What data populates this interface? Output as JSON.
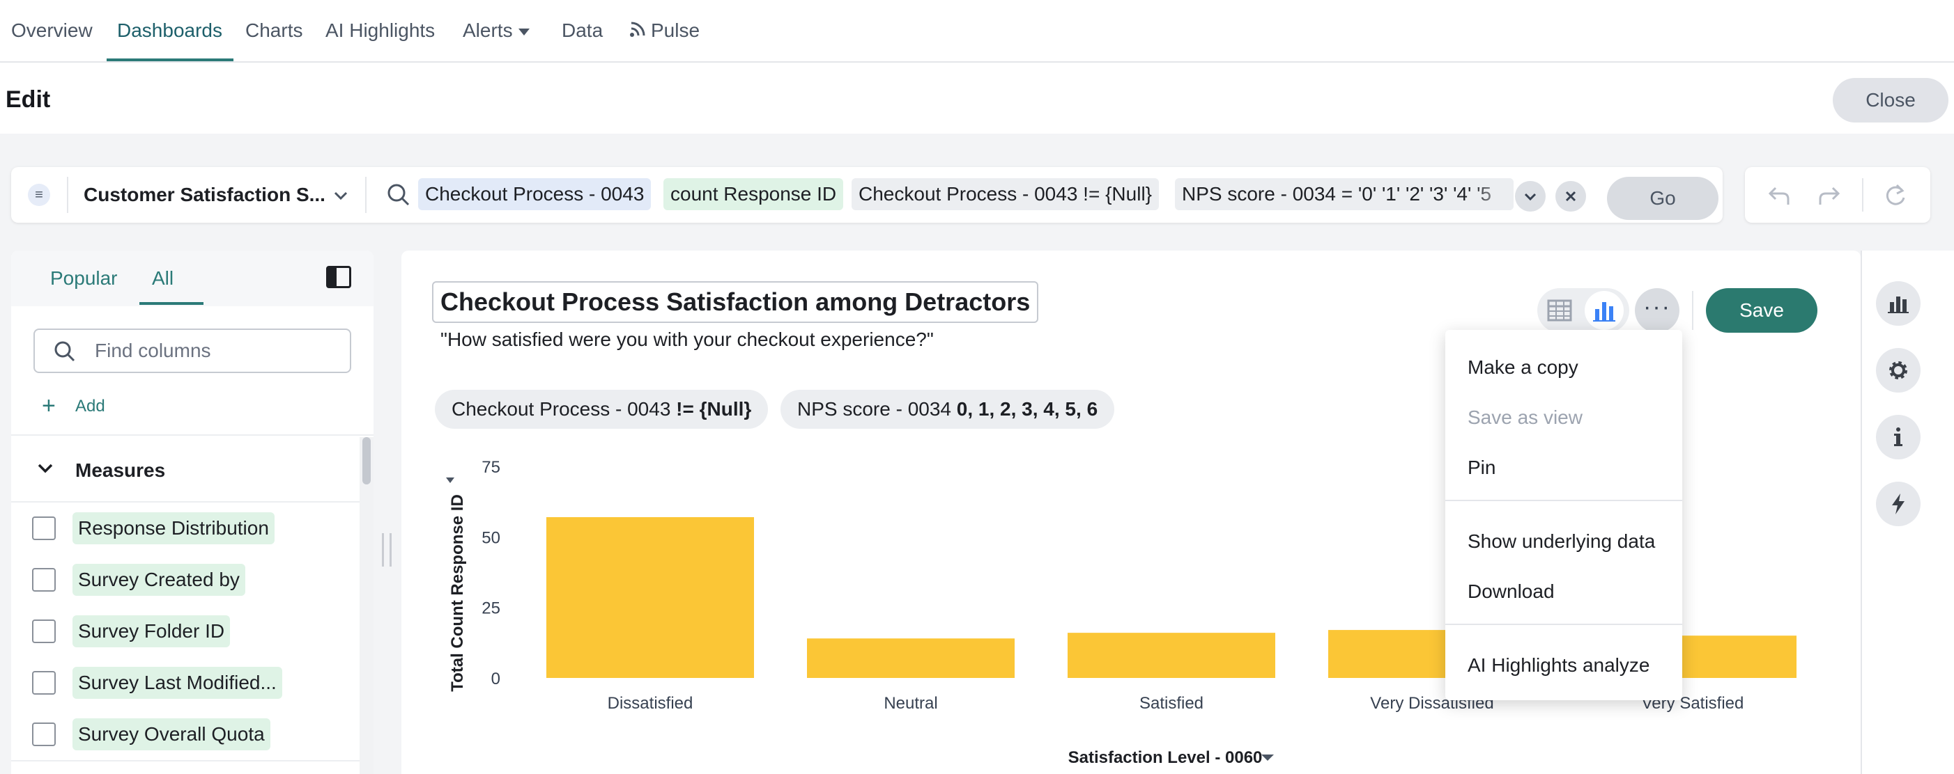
{
  "topnav": {
    "items": [
      "Overview",
      "Dashboards",
      "Charts",
      "AI Highlights",
      "Alerts",
      "Data",
      "Pulse"
    ],
    "active": "Dashboards"
  },
  "editbar": {
    "title": "Edit",
    "close_label": "Close"
  },
  "querybar": {
    "source": "Customer Satisfaction S...",
    "chips": [
      "Checkout Process - 0043",
      "count Response ID",
      "Checkout Process - 0043 != {Null}",
      "NPS score - 0034 = '0' '1' '2' '3' '4' '5"
    ],
    "go_label": "Go"
  },
  "leftpanel": {
    "tabs": [
      "Popular",
      "All"
    ],
    "active_tab": "All",
    "search_placeholder": "Find columns",
    "add_label": "Add",
    "section_label": "Measures",
    "columns": [
      "Response Distribution",
      "Survey Created by",
      "Survey Folder ID",
      "Survey Last Modified...",
      "Survey Overall Quota"
    ]
  },
  "main": {
    "title": "Checkout Process Satisfaction among Detractors",
    "description": "\"How satisfied were you with your checkout experience?\"",
    "filters": [
      {
        "field": "Checkout Process - 0043",
        "value": "!= {Null}"
      },
      {
        "field": "NPS score - 0034",
        "value": "0, 1, 2, 3, 4, 5, 6"
      }
    ],
    "save_label": "Save",
    "more_label": "···"
  },
  "menu": {
    "items": [
      "Make a copy",
      "Save as view",
      "Pin",
      "Show underlying data",
      "Download",
      "AI Highlights analyze"
    ],
    "disabled": [
      "Save as view"
    ]
  },
  "colors": {
    "accent": "#2b7a78",
    "bar": "#fbc636",
    "save": "#2b7a6f"
  },
  "chart_data": {
    "type": "bar",
    "categories": [
      "Dissatisfied",
      "Neutral",
      "Satisfied",
      "Very Dissatisfied",
      "Very Satisfied"
    ],
    "values": [
      57,
      14,
      16,
      17,
      15
    ],
    "xlabel": "Satisfaction Level - 0060",
    "ylabel": "Total Count Response ID",
    "yticks": [
      0,
      25,
      50,
      75
    ],
    "ylim": [
      0,
      75
    ],
    "grid": false,
    "legend": "none"
  }
}
